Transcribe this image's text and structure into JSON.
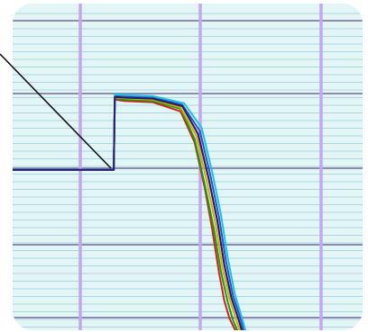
{
  "chart_data": {
    "type": "line",
    "title": "",
    "xlabel": "",
    "ylabel": "",
    "xlim": [
      0,
      100
    ],
    "ylim": [
      0,
      100
    ],
    "grid": true,
    "legend": "none",
    "colors": {
      "background": "#e3f5f5",
      "minor_grid": "#a8d6e2",
      "major_grid_h": "#8c8cac",
      "major_grid_v": "#c4a8ee",
      "callout_line": "#111111"
    },
    "series": [
      {
        "color": "#d42020",
        "x": [
          0,
          28.9,
          29.2,
          32,
          40,
          48,
          52,
          55,
          57,
          59,
          60.5,
          62,
          64.5
        ],
        "y": [
          49.1,
          49.1,
          70.6,
          70.2,
          69.8,
          67.0,
          57.5,
          43.0,
          31.0,
          17.5,
          9.0,
          3.5,
          -2.0
        ]
      },
      {
        "color": "#1a9a1a",
        "x": [
          0,
          28.9,
          29.2,
          32,
          40,
          48,
          52,
          55,
          57.5,
          59.5,
          61.5,
          63,
          65
        ],
        "y": [
          49.1,
          49.1,
          71.0,
          70.6,
          70.2,
          67.8,
          58.5,
          44.0,
          31.0,
          18.0,
          8.5,
          3.0,
          -2.0
        ]
      },
      {
        "color": "#d0b000",
        "x": [
          0,
          28.9,
          29.2,
          32,
          40,
          48,
          52.5,
          55.5,
          58,
          60,
          62,
          63.8,
          65.5
        ],
        "y": [
          49.1,
          49.1,
          71.3,
          71.0,
          70.6,
          68.2,
          59.5,
          45.5,
          32.5,
          19.0,
          9.5,
          3.5,
          -2.0
        ]
      },
      {
        "color": "#ee22ee",
        "x": [
          0,
          28.9,
          29.2,
          32,
          40,
          48.5,
          53,
          56,
          58.5,
          60.5,
          62.5,
          64.5,
          66
        ],
        "y": [
          49.1,
          49.1,
          71.6,
          71.4,
          71.0,
          68.6,
          60.2,
          46.5,
          33.5,
          20.0,
          10.0,
          3.5,
          -2.0
        ]
      },
      {
        "color": "#1f5cc8",
        "x": [
          0,
          28.9,
          29.2,
          32,
          40,
          48.5,
          53.5,
          56.5,
          59,
          61,
          63,
          65,
          66.5
        ],
        "y": [
          49.1,
          49.1,
          71.9,
          71.6,
          71.3,
          69.0,
          61.0,
          47.5,
          34.5,
          21.0,
          10.5,
          4.0,
          -2.0
        ]
      },
      {
        "color": "#20c0e8",
        "x": [
          0,
          28.9,
          29.2,
          32,
          40,
          49,
          54,
          57,
          59.5,
          61.5,
          63.5,
          65.5,
          67
        ],
        "y": [
          49.1,
          49.1,
          72.2,
          72.0,
          71.7,
          69.5,
          62.0,
          48.5,
          35.5,
          22.0,
          11.0,
          4.0,
          -2.0
        ]
      },
      {
        "color": "#2a1a6a",
        "x": [
          0,
          28.9,
          29.2,
          32,
          40,
          48.5,
          53,
          56,
          58.5,
          60.5,
          62.5,
          64.5,
          66
        ],
        "y": [
          49.1,
          49.1,
          71.4,
          71.2,
          70.9,
          68.6,
          60.0,
          46.5,
          33.5,
          20.0,
          10.0,
          3.5,
          -2.0
        ]
      }
    ]
  }
}
